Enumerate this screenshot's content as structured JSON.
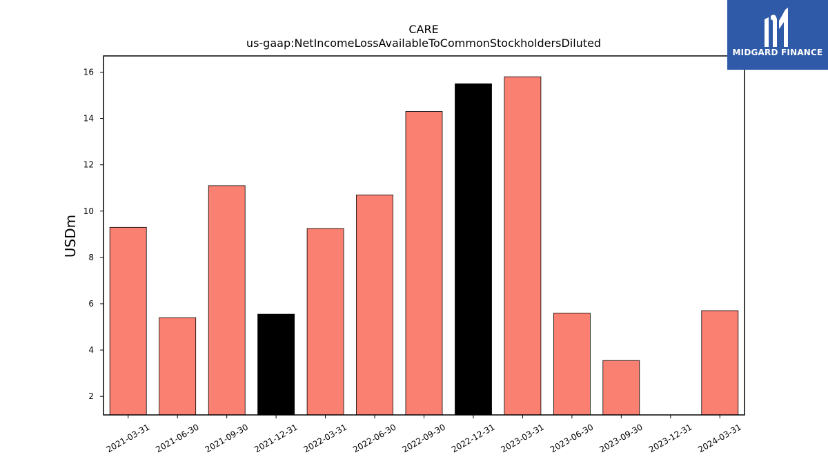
{
  "brand": {
    "name": "MIDGARD FINANCE",
    "color": "#2f5aa8"
  },
  "chart_data": {
    "type": "bar",
    "title": "CARE",
    "subtitle": "us-gaap:NetIncomeLossAvailableToCommonStockholdersDiluted",
    "xlabel": "",
    "ylabel": "USDm",
    "categories": [
      "2021-03-31",
      "2021-06-30",
      "2021-09-30",
      "2021-12-31",
      "2022-03-31",
      "2022-06-30",
      "2022-09-30",
      "2022-12-31",
      "2023-03-31",
      "2023-06-30",
      "2023-09-30",
      "2023-12-31",
      "2024-03-31"
    ],
    "values": [
      9.3,
      5.4,
      11.1,
      5.55,
      9.25,
      10.7,
      14.3,
      15.5,
      15.8,
      5.6,
      3.55,
      null,
      5.7
    ],
    "bar_colors": [
      "#fa8072",
      "#fa8072",
      "#fa8072",
      "#000000",
      "#fa8072",
      "#fa8072",
      "#fa8072",
      "#000000",
      "#fa8072",
      "#fa8072",
      "#fa8072",
      "#fa8072",
      "#fa8072"
    ],
    "yticks": [
      "2",
      "4",
      "6",
      "8",
      "10",
      "12",
      "14",
      "16"
    ],
    "ylim": [
      1.2,
      16.7
    ],
    "grid": false,
    "legend": "none"
  }
}
